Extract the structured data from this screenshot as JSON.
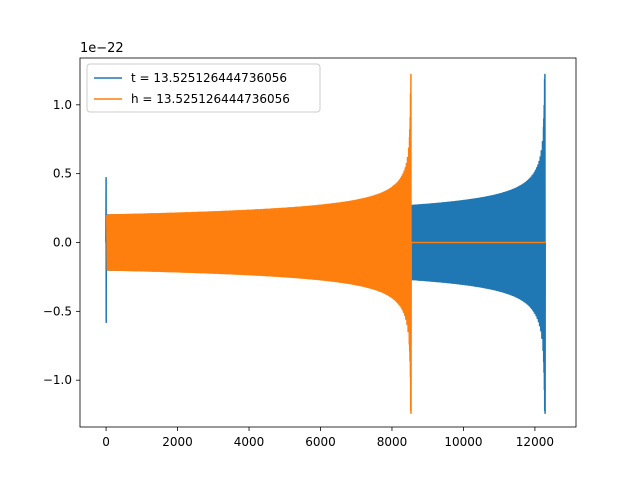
{
  "chart_data": {
    "type": "line",
    "title": "",
    "xlabel": "",
    "ylabel": "",
    "y_offset_label": "1e−22",
    "xlim": [
      -730,
      13150
    ],
    "ylim": [
      -1.34,
      1.34
    ],
    "x_ticks": [
      0,
      2000,
      4000,
      6000,
      8000,
      10000,
      12000
    ],
    "x_tick_labels": [
      "0",
      "2000",
      "4000",
      "6000",
      "8000",
      "10000",
      "12000"
    ],
    "y_ticks": [
      -1.0,
      -0.5,
      0.0,
      0.5,
      1.0
    ],
    "y_tick_labels": [
      "−1.0",
      "−0.5",
      "0.0",
      "0.5",
      "1.0"
    ],
    "grid": false,
    "legend_position": "top-left",
    "series": [
      {
        "name": "t = 13.525126444736056",
        "color": "#1f77b4",
        "description_values": {
          "x_start": -5,
          "x_merger": 12280,
          "x_end": 12300,
          "initial_burst_peak": 0.47,
          "initial_burst_trough": -0.58,
          "envelope_start": 0.2,
          "envelope_mid": 0.25,
          "peak_max": 1.22,
          "peak_min": -1.24
        }
      },
      {
        "name": "h = 13.525126444736056",
        "color": "#ff7f0e",
        "description_values": {
          "x_start": 0,
          "x_merger": 8530,
          "x_end": 12300,
          "envelope_start": 0.2,
          "peak_max": 1.22,
          "peak_min": -1.24,
          "post_merger_value": 0.0
        }
      }
    ]
  }
}
